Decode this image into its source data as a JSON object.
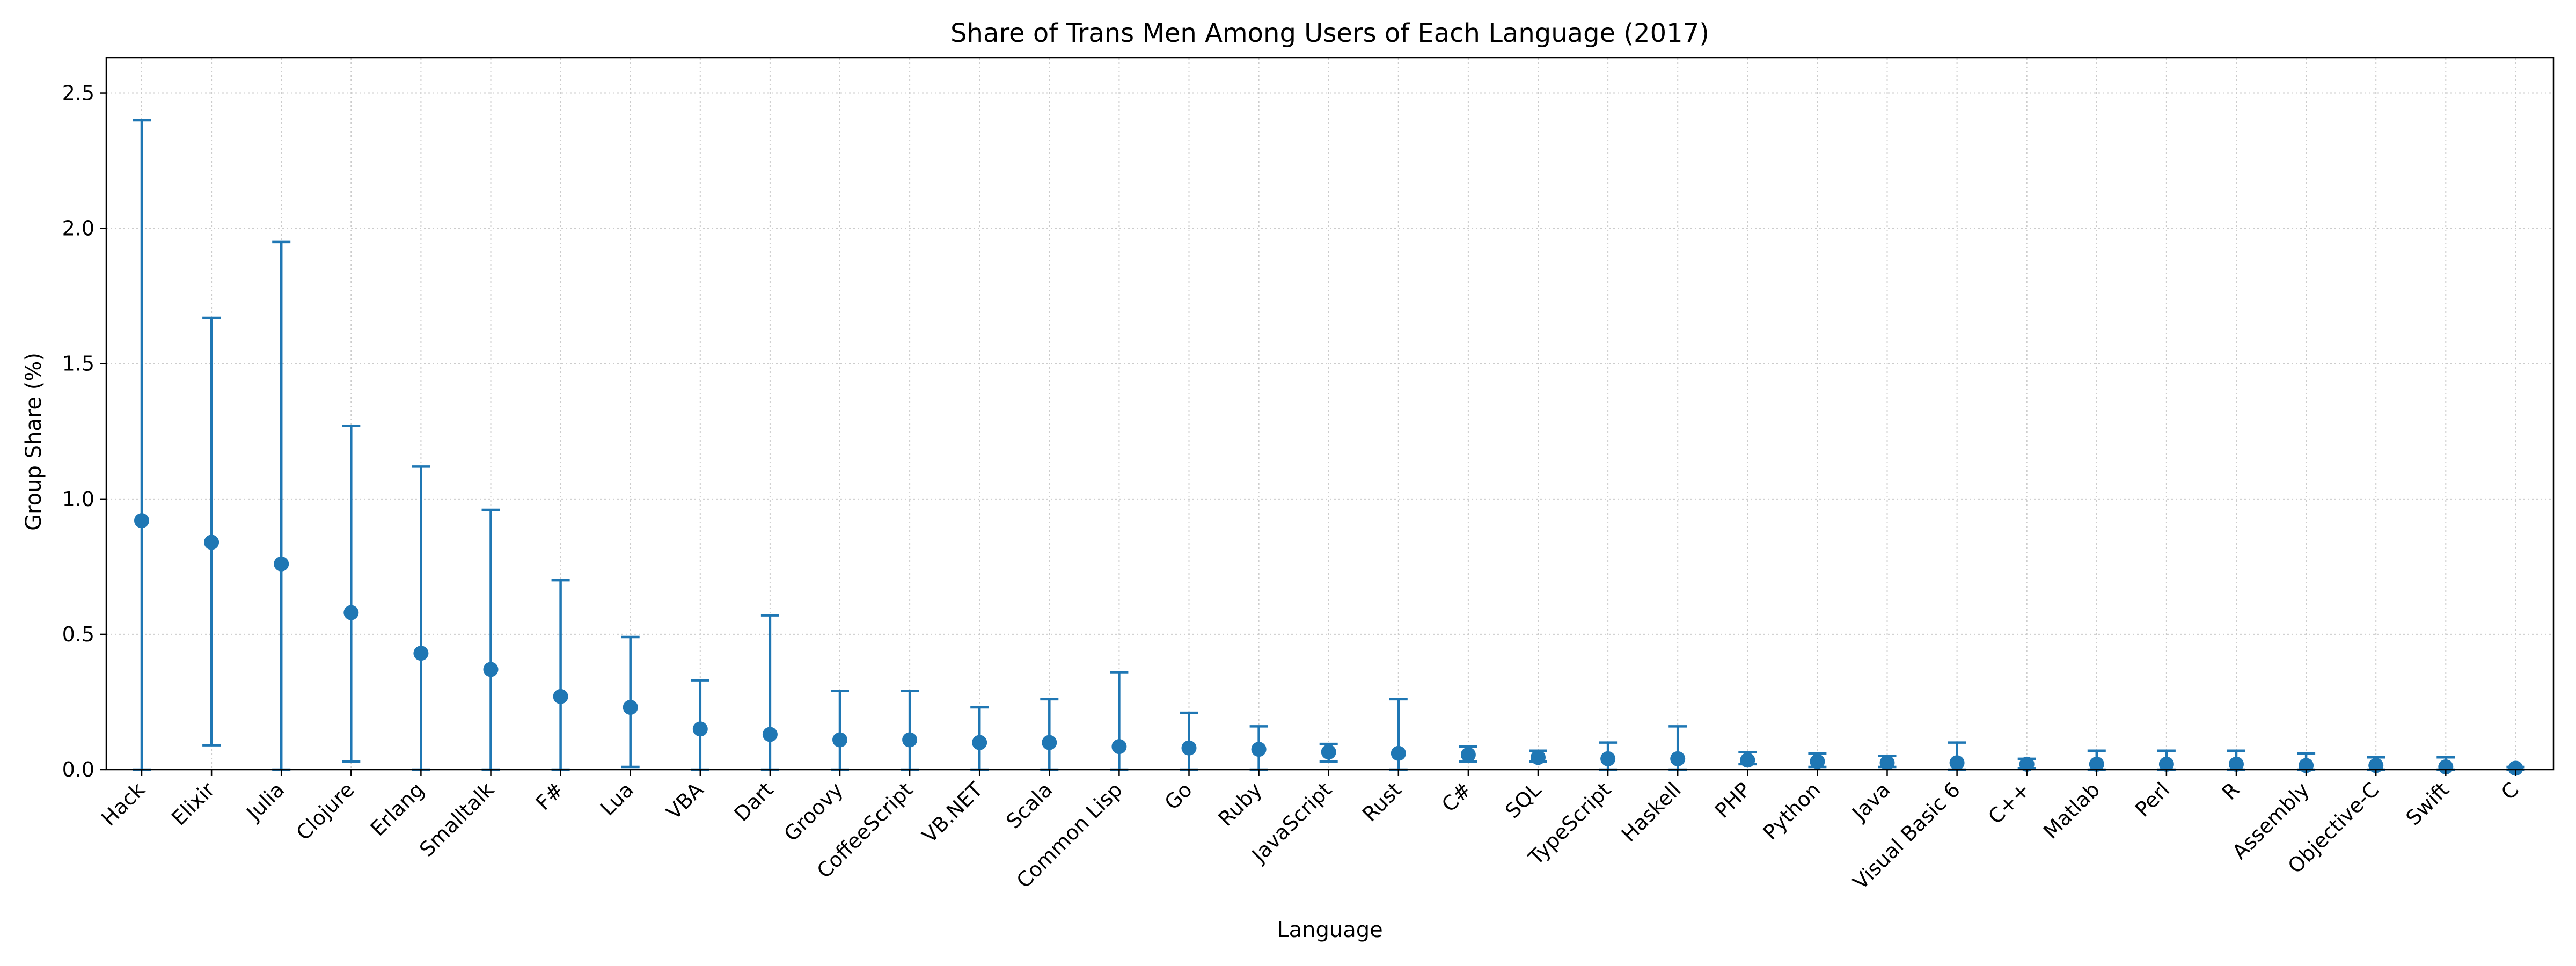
{
  "chart_data": {
    "type": "scatter",
    "subtype": "errorbar",
    "title": "Share of Trans Men Among Users of Each Language (2017)",
    "xlabel": "Language",
    "ylabel": "Group Share (%)",
    "ylim": [
      0,
      2.63
    ],
    "yticks": [
      "0.0",
      "0.5",
      "1.0",
      "1.5",
      "2.0",
      "2.5"
    ],
    "grid": true,
    "color": "#1f77b4",
    "categories": [
      "Hack",
      "Elixir",
      "Julia",
      "Clojure",
      "Erlang",
      "Smalltalk",
      "F#",
      "Lua",
      "VBA",
      "Dart",
      "Groovy",
      "CoffeeScript",
      "VB.NET",
      "Scala",
      "Common Lisp",
      "Go",
      "Ruby",
      "JavaScript",
      "Rust",
      "C#",
      "SQL",
      "TypeScript",
      "Haskell",
      "PHP",
      "Python",
      "Java",
      "Visual Basic 6",
      "C++",
      "Matlab",
      "Perl",
      "R",
      "Assembly",
      "Objective-C",
      "Swift",
      "C"
    ],
    "values": [
      0.92,
      0.84,
      0.76,
      0.58,
      0.43,
      0.37,
      0.27,
      0.23,
      0.15,
      0.13,
      0.11,
      0.11,
      0.1,
      0.1,
      0.085,
      0.08,
      0.075,
      0.065,
      0.06,
      0.055,
      0.045,
      0.04,
      0.04,
      0.035,
      0.03,
      0.025,
      0.025,
      0.02,
      0.02,
      0.02,
      0.02,
      0.015,
      0.015,
      0.01,
      0.005
    ],
    "lower": [
      0.0,
      0.09,
      0.0,
      0.03,
      0.0,
      0.0,
      0.0,
      0.01,
      0.0,
      0.0,
      0.0,
      0.0,
      0.0,
      0.0,
      0.0,
      0.0,
      0.0,
      0.03,
      0.0,
      0.03,
      0.03,
      0.0,
      0.0,
      0.02,
      0.01,
      0.01,
      0.0,
      0.005,
      0.0,
      0.0,
      0.0,
      0.0,
      0.0,
      0.0,
      0.0
    ],
    "upper": [
      2.4,
      1.67,
      1.95,
      1.27,
      1.12,
      0.96,
      0.7,
      0.49,
      0.33,
      0.57,
      0.29,
      0.29,
      0.23,
      0.26,
      0.36,
      0.21,
      0.16,
      0.095,
      0.26,
      0.085,
      0.07,
      0.1,
      0.16,
      0.065,
      0.06,
      0.05,
      0.1,
      0.04,
      0.07,
      0.07,
      0.07,
      0.06,
      0.045,
      0.045,
      0.01
    ]
  }
}
